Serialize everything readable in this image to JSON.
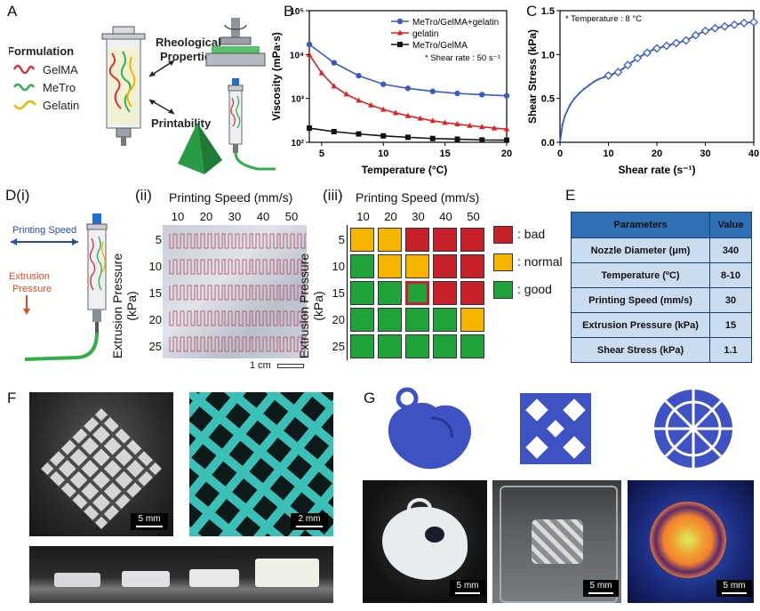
{
  "panels": {
    "A": "A",
    "B": "B",
    "C": "C",
    "D": "D",
    "E": "E",
    "F": "F",
    "G": "G",
    "Di": "(i)",
    "Dii": "(ii)",
    "Diii": "(iii)"
  },
  "panelA": {
    "formulation": "Formulation",
    "components": [
      "GelMA",
      "MeTro",
      "Gelatin"
    ],
    "rheological": [
      "Rheological",
      "Properties"
    ],
    "printability": "Printability"
  },
  "panelB": {
    "ylabel": "Viscosity (mPa·s)",
    "xlabel": "Temperature (°C)",
    "note": "* Shear rate : 50 s⁻¹"
  },
  "panelC": {
    "ylabel": "Shear Stress (kPa)",
    "xlabel": "Shear rate (s⁻¹)",
    "note": "* Temperature : 8 °C"
  },
  "panelD": {
    "printing_speed_arrow": "Printing Speed",
    "extrusion_arrow": [
      "Extrusion",
      "Pressure"
    ],
    "axis_top": "Printing Speed (mm/s)",
    "axis_side": "Extrusion Pressure (kPa)",
    "speeds": [
      "10",
      "20",
      "30",
      "40",
      "50"
    ],
    "pressures": [
      "5",
      "10",
      "15",
      "20",
      "25"
    ],
    "scale": "1 cm",
    "grid": [
      [
        "normal",
        "normal",
        "bad",
        "bad",
        "bad"
      ],
      [
        "good",
        "normal",
        "normal",
        "bad",
        "bad"
      ],
      [
        "good",
        "good",
        "selected",
        "bad",
        "bad"
      ],
      [
        "good",
        "good",
        "good",
        "good",
        "normal"
      ],
      [
        "good",
        "good",
        "good",
        "good",
        "good"
      ]
    ],
    "legend": [
      {
        "key": "bad",
        "label": ": bad",
        "color": "#c8202a"
      },
      {
        "key": "normal",
        "label": ": normal",
        "color": "#f7b500"
      },
      {
        "key": "good",
        "label": ": good",
        "color": "#1fa33a"
      }
    ]
  },
  "panelE": {
    "headers": [
      "Parameters",
      "Value"
    ],
    "rows": [
      [
        "Nozzle Diameter (μm)",
        "340"
      ],
      [
        "Temperature (ºC)",
        "8-10"
      ],
      [
        "Printing Speed (mm/s)",
        "30"
      ],
      [
        "Extrusion Pressure (kPa)",
        "15"
      ],
      [
        "Shear Stress (kPa)",
        "1.1"
      ]
    ]
  },
  "panelF": {
    "scale1": "5 mm",
    "scale2": "2 mm"
  },
  "panelG": {
    "scale1": "5 mm",
    "scale2": "5 mm",
    "scale3": "5 mm"
  },
  "chart_data": [
    {
      "type": "line",
      "xlabel": "Temperature (°C)",
      "ylabel": "Viscosity (mPa·s)",
      "xlim": [
        4,
        20
      ],
      "ylim": [
        100,
        100000
      ],
      "yscale": "log",
      "xticks": [
        5,
        10,
        15,
        20
      ],
      "yticks": [
        "10²",
        "10³",
        "10⁴",
        "10⁵"
      ],
      "legend_position": "top-right",
      "series": [
        {
          "name": "MeTro/GelMA+gelatin",
          "color": "#3b5bc8",
          "marker": "circle",
          "x": [
            4,
            6,
            8,
            10,
            12,
            14,
            16,
            18,
            20
          ],
          "y": [
            17000,
            6500,
            3300,
            2100,
            1700,
            1450,
            1300,
            1220,
            1150
          ]
        },
        {
          "name": "gelatin",
          "color": "#e02020",
          "marker": "triangle",
          "x": [
            4,
            5,
            6,
            7,
            8,
            9,
            10,
            11,
            12,
            13,
            14,
            15,
            16,
            17,
            18,
            19,
            20
          ],
          "y": [
            10000,
            3800,
            1900,
            1250,
            900,
            700,
            560,
            470,
            400,
            350,
            310,
            280,
            260,
            240,
            225,
            210,
            200
          ]
        },
        {
          "name": "MeTro/GelMA",
          "color": "#111111",
          "marker": "square",
          "x": [
            4,
            6,
            8,
            10,
            12,
            14,
            16,
            18,
            20
          ],
          "y": [
            210,
            175,
            155,
            140,
            130,
            122,
            118,
            113,
            112
          ]
        }
      ],
      "annotation": "* Shear rate : 50 s⁻¹"
    },
    {
      "type": "line",
      "xlabel": "Shear rate (s⁻¹)",
      "ylabel": "Shear Stress (kPa)",
      "xlim": [
        0,
        40
      ],
      "ylim": [
        0,
        1.5
      ],
      "xticks": [
        0,
        10,
        20,
        30,
        40
      ],
      "yticks": [
        0.0,
        0.5,
        1.0,
        1.5
      ],
      "series": [
        {
          "color": "#3b5bc8",
          "marker": "diamond",
          "x": [
            0,
            0.5,
            1,
            2,
            3,
            4,
            5,
            6,
            7,
            8,
            9,
            10,
            11,
            12,
            13,
            14,
            15,
            16,
            17,
            18,
            19,
            20,
            22,
            24,
            26,
            28,
            30,
            32,
            34,
            36,
            38,
            40
          ],
          "y": [
            0,
            0.2,
            0.3,
            0.42,
            0.5,
            0.56,
            0.61,
            0.65,
            0.69,
            0.72,
            0.74,
            0.76,
            0.78,
            0.8,
            0.84,
            0.88,
            0.92,
            0.96,
            0.99,
            1.02,
            1.05,
            1.07,
            1.1,
            1.13,
            1.16,
            1.22,
            1.27,
            1.3,
            1.32,
            1.34,
            1.36,
            1.37
          ]
        }
      ],
      "annotation": "* Temperature : 8 °C"
    }
  ],
  "colors": {
    "bad": "#c8202a",
    "normal": "#f7b500",
    "good": "#1fa33a",
    "table_header": "#2f6fb5",
    "table_body": "#c9dcf0"
  }
}
